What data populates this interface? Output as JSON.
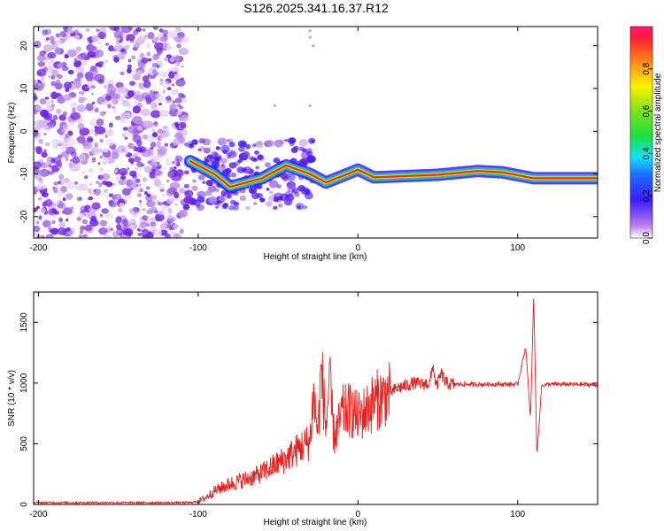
{
  "title": "S126.2025.341.16.37.R12",
  "chart_data": [
    {
      "type": "heatmap",
      "xlabel": "Height of straight line (km)",
      "ylabel": "Frequency (Hz)",
      "xlim": [
        -203,
        150
      ],
      "ylim": [
        -25,
        24.5
      ],
      "x_ticks": [
        -200,
        -100,
        0,
        100
      ],
      "y_ticks": [
        -20,
        -10,
        0,
        10,
        20
      ],
      "colorbar": {
        "label": "Normalized spectral amplitude",
        "range": [
          0,
          1
        ],
        "ticks": [
          0.0,
          0.2,
          0.4,
          0.6,
          0.8
        ],
        "tick_labels": [
          "0.0",
          "0.2",
          "0.4",
          "0.6",
          "0.8"
        ]
      },
      "ridge": [
        {
          "x": -105,
          "y": -7
        },
        {
          "x": -90,
          "y": -10
        },
        {
          "x": -80,
          "y": -13
        },
        {
          "x": -60,
          "y": -11
        },
        {
          "x": -45,
          "y": -8
        },
        {
          "x": -30,
          "y": -10
        },
        {
          "x": -20,
          "y": -12
        },
        {
          "x": -10,
          "y": -10.5
        },
        {
          "x": 0,
          "y": -9
        },
        {
          "x": 10,
          "y": -10.8
        },
        {
          "x": 50,
          "y": -10.2
        },
        {
          "x": 75,
          "y": -9.3
        },
        {
          "x": 90,
          "y": -9.6
        },
        {
          "x": 110,
          "y": -11
        },
        {
          "x": 150,
          "y": -11
        }
      ]
    },
    {
      "type": "line",
      "xlabel": "Height of straight line (km)",
      "ylabel": "SNR (10 * v/v)",
      "xlim": [
        -203,
        150
      ],
      "ylim": [
        0,
        1750
      ],
      "x_ticks": [
        -200,
        -100,
        0,
        100
      ],
      "y_ticks": [
        0,
        500,
        1000,
        1500
      ],
      "color": "#e8201e",
      "series": [
        {
          "name": "SNR",
          "x": [
            -203,
            -180,
            -160,
            -140,
            -120,
            -105,
            -100,
            -95,
            -90,
            -85,
            -80,
            -75,
            -70,
            -65,
            -60,
            -55,
            -50,
            -45,
            -40,
            -35,
            -30,
            -28,
            -25,
            -23,
            -20,
            -18,
            -15,
            -12,
            -10,
            -5,
            0,
            5,
            10,
            15,
            20,
            25,
            30,
            35,
            40,
            45,
            47,
            49,
            52,
            55,
            60,
            70,
            80,
            90,
            100,
            105,
            108,
            110,
            112,
            115,
            120,
            130,
            140,
            150
          ],
          "y": [
            15,
            15,
            15,
            15,
            15,
            15,
            25,
            60,
            110,
            140,
            170,
            190,
            210,
            230,
            260,
            300,
            340,
            380,
            430,
            480,
            520,
            900,
            600,
            1120,
            620,
            1030,
            560,
            650,
            760,
            780,
            720,
            770,
            850,
            880,
            920,
            960,
            980,
            1000,
            990,
            1000,
            1150,
            960,
            1080,
            1000,
            990,
            990,
            990,
            990,
            990,
            1300,
            700,
            1730,
            400,
            980,
            990,
            990,
            990,
            985
          ]
        }
      ]
    }
  ]
}
